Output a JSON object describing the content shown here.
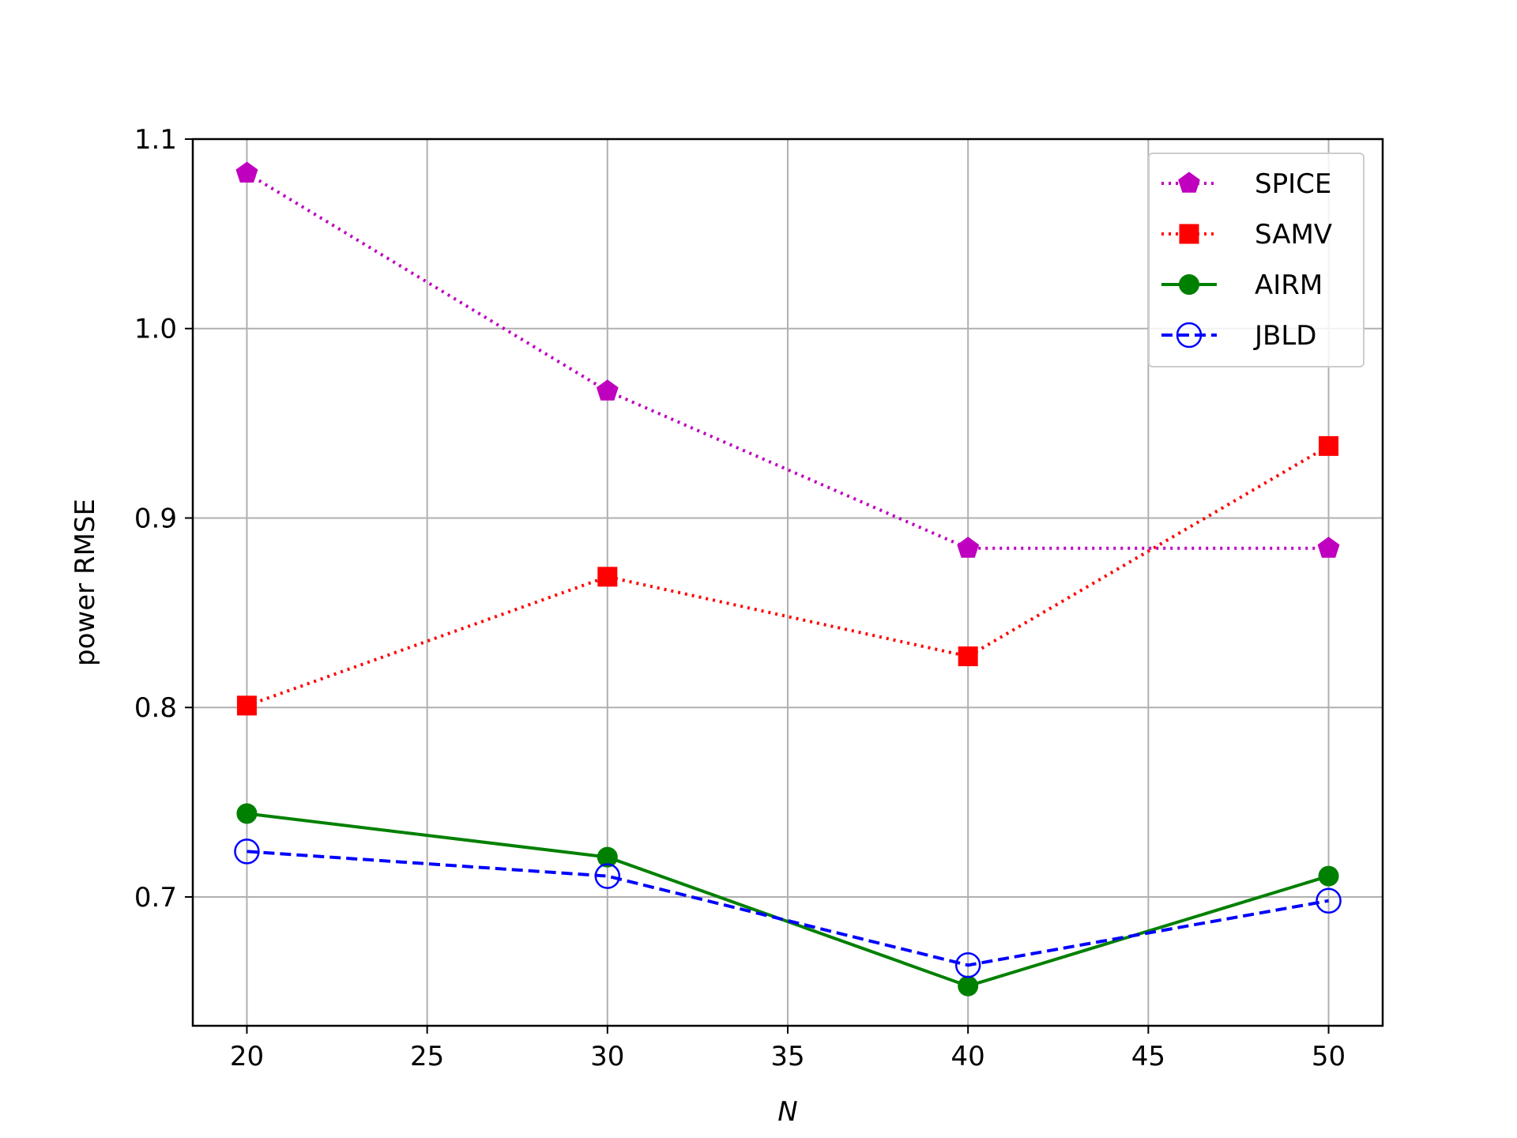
{
  "chart_data": {
    "type": "line",
    "xlabel": "N",
    "ylabel": "power RMSE",
    "xlim": [
      18.5,
      51.5
    ],
    "ylim": [
      0.632,
      1.1
    ],
    "xticks": [
      20,
      25,
      30,
      35,
      40,
      45,
      50
    ],
    "xtick_labels": [
      "20",
      "25",
      "30",
      "35",
      "40",
      "45",
      "50"
    ],
    "yticks": [
      0.7,
      0.8,
      0.9,
      1.0,
      1.1
    ],
    "ytick_labels": [
      "0.7",
      "0.8",
      "0.9",
      "1.0",
      "1.1"
    ],
    "grid": true,
    "legend_position": "top-right",
    "x": [
      20,
      30,
      40,
      50
    ],
    "series": [
      {
        "name": "SPICE",
        "values": [
          1.082,
          0.967,
          0.884,
          0.884
        ],
        "color": "#bf00bf",
        "line": "dotted",
        "marker": "pentagon"
      },
      {
        "name": "SAMV",
        "values": [
          0.801,
          0.869,
          0.827,
          0.938
        ],
        "color": "#ff0000",
        "line": "dotted",
        "marker": "square"
      },
      {
        "name": "AIRM",
        "values": [
          0.744,
          0.721,
          0.653,
          0.711
        ],
        "color": "#008000",
        "line": "solid",
        "marker": "circle"
      },
      {
        "name": "JBLD",
        "values": [
          0.724,
          0.711,
          0.664,
          0.698
        ],
        "color": "#0000ff",
        "line": "dashed",
        "marker": "open-circle"
      }
    ]
  }
}
